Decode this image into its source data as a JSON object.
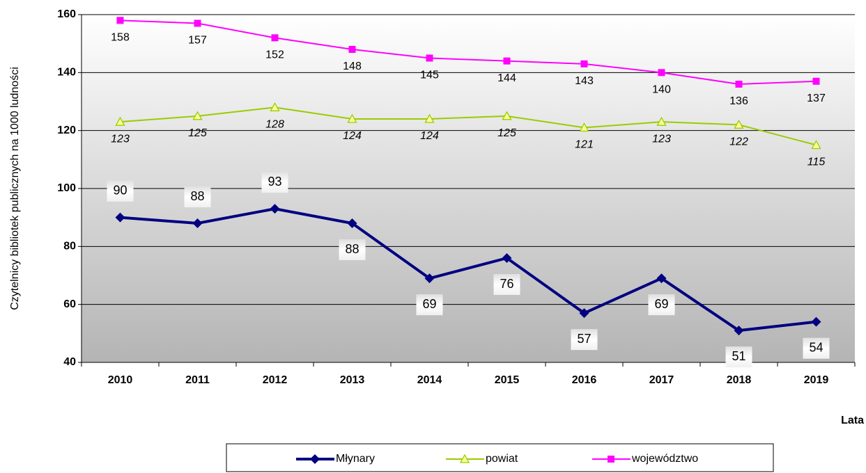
{
  "chart_data": {
    "type": "line",
    "y_label": "Czytelnicy bibliotek publicznych na 1000 ludności",
    "x_label": "Lata",
    "categories": [
      "2010",
      "2011",
      "2012",
      "2013",
      "2014",
      "2015",
      "2016",
      "2017",
      "2018",
      "2019"
    ],
    "series": [
      {
        "name": "Młynary",
        "color": "#000080",
        "marker": "diamond",
        "values": [
          90,
          88,
          93,
          88,
          69,
          76,
          57,
          69,
          51,
          54
        ]
      },
      {
        "name": "powiat",
        "color": "#99cc00",
        "marker": "triangle",
        "values": [
          123,
          125,
          128,
          124,
          124,
          125,
          121,
          123,
          122,
          115
        ]
      },
      {
        "name": "województwo",
        "color": "#ff00ff",
        "marker": "square",
        "values": [
          158,
          157,
          152,
          148,
          145,
          144,
          143,
          140,
          136,
          137
        ]
      }
    ],
    "ylim": [
      40,
      160
    ],
    "yticks": [
      40,
      60,
      80,
      100,
      120,
      140,
      160
    ],
    "grid": true,
    "legend": "bottom"
  }
}
